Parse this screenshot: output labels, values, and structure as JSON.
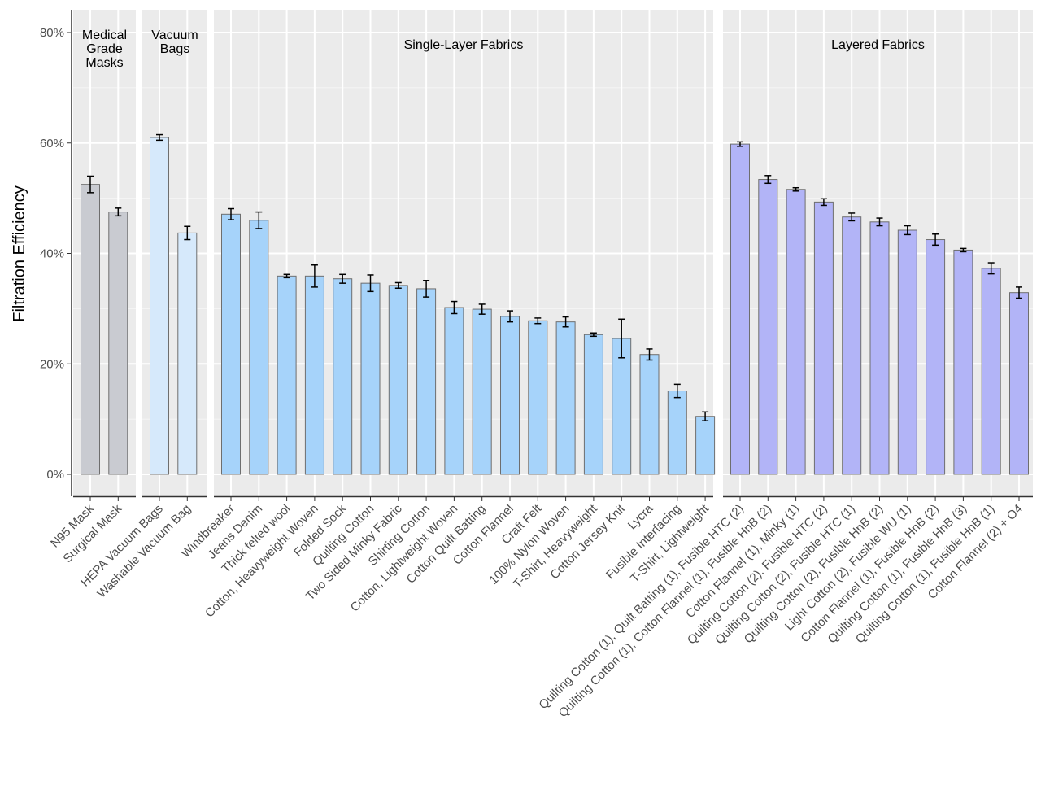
{
  "chart_data": {
    "type": "bar",
    "ylabel": "Filtration Efficiency",
    "xlabel": "",
    "ylim": [
      0,
      0.8
    ],
    "y_ticks": [
      "0%",
      "20%",
      "40%",
      "60%",
      "80%"
    ],
    "grid": true,
    "panels": [
      {
        "title": "Medical Grade Masks",
        "title_lines": [
          "Medical",
          "Grade",
          "Masks"
        ],
        "color": "#c9cbd1",
        "categories": [
          "N95 Mask",
          "Surgical Mask"
        ],
        "values": [
          0.525,
          0.475
        ],
        "errors": [
          0.015,
          0.007
        ]
      },
      {
        "title": "Vacuum Bags",
        "title_lines": [
          "Vacuum",
          "Bags"
        ],
        "color": "#d6e9fb",
        "categories": [
          "HEPA Vacuum Bags",
          "Washable Vacuum Bag"
        ],
        "values": [
          0.61,
          0.437
        ],
        "errors": [
          0.005,
          0.012
        ]
      },
      {
        "title": "Single-Layer Fabrics",
        "title_lines": [
          "Single-Layer Fabrics"
        ],
        "color": "#a6d3fa",
        "categories": [
          "Windbreaker",
          "Jeans Denim",
          "Thick felted wool",
          "Cotton, Heavyweight Woven",
          "Folded Sock",
          "Quilting Cotton",
          "Two Sided Minky Fabric",
          "Shirting Cotton",
          "Cotton, Lightweight Woven",
          "Cotton Quilt Batting",
          "Cotton Flannel",
          "Craft Felt",
          "100% Nylon Woven",
          "T-Shirt, Heavyweight",
          "Cotton Jersey Knit",
          "Lycra",
          "Fusible Interfacing",
          "T-Shirt, Lightweight"
        ],
        "values": [
          0.471,
          0.46,
          0.359,
          0.359,
          0.354,
          0.346,
          0.342,
          0.336,
          0.302,
          0.299,
          0.286,
          0.278,
          0.276,
          0.253,
          0.246,
          0.217,
          0.151,
          0.105
        ],
        "errors": [
          0.01,
          0.015,
          0.003,
          0.02,
          0.008,
          0.015,
          0.005,
          0.015,
          0.011,
          0.009,
          0.01,
          0.005,
          0.009,
          0.003,
          0.035,
          0.01,
          0.012,
          0.008
        ]
      },
      {
        "title": "Layered Fabrics",
        "title_lines": [
          "Layered Fabrics"
        ],
        "color": "#b2b4f7",
        "categories": [
          "Quilting Cotton (1), Quilt Batting (1), Fusible HTC (2)",
          "Quilting Cotton (1), Cotton Flannel (1), Fusible HnB (2)",
          "Cotton Flannel (1), Minky (1)",
          "Quilting Cotton (2), Fusible HTC (2)",
          "Quilting Cotton (2), Fusible HTC (1)",
          "Quilting Cotton (2), Fusible HnB (2)",
          "Light Cotton (2), Fusible WU (1)",
          "Cotton Flannel (1), Fusible HnB (2)",
          "Quilting Cotton (1), Fusible HnB (3)",
          "Quilting Cotton (1), Fusible HnB (1)",
          "Cotton Flannel (2) + O4"
        ],
        "values": [
          0.598,
          0.534,
          0.516,
          0.493,
          0.466,
          0.457,
          0.442,
          0.425,
          0.406,
          0.373,
          0.329
        ],
        "errors": [
          0.004,
          0.007,
          0.003,
          0.006,
          0.007,
          0.007,
          0.008,
          0.01,
          0.003,
          0.01,
          0.01
        ]
      }
    ]
  }
}
